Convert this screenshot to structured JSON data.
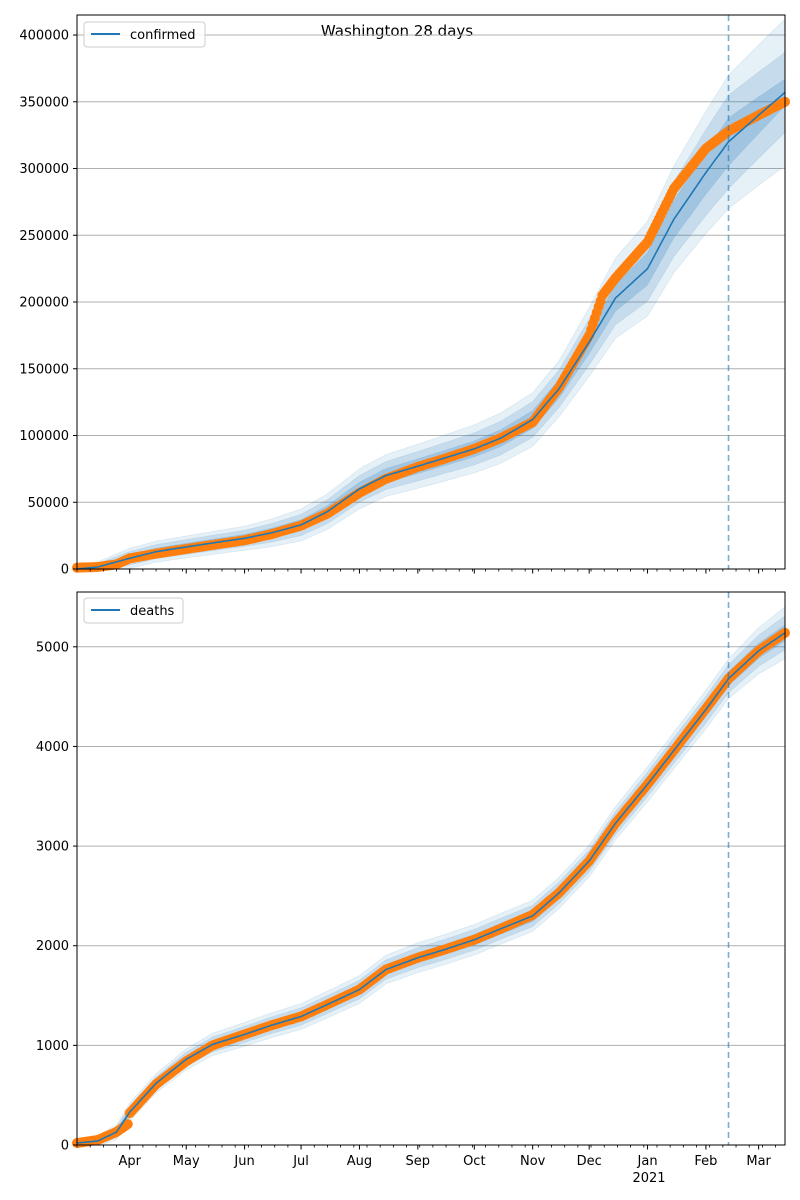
{
  "figure_title": "Washington 28 days",
  "x_axis": {
    "year_label": "2021",
    "tick_labels": [
      "Apr",
      "May",
      "Jun",
      "Jul",
      "Aug",
      "Sep",
      "Oct",
      "Nov",
      "Dec",
      "Jan",
      "Feb",
      "Mar"
    ]
  },
  "colors": {
    "model_line": "#1f77b4",
    "observed": "#ff7f0e",
    "band": "#1f77b4",
    "cutoff_line": "#1f77b4",
    "grid": "#b0b0b0"
  },
  "chart_data": [
    {
      "type": "line",
      "panel": "top",
      "legend": "confirmed",
      "legend_position": "top-left",
      "grid": "horizontal",
      "x_range": [
        "2020-03-04",
        "2021-03-15"
      ],
      "ylim": [
        0,
        415000
      ],
      "y_ticks": [
        0,
        50000,
        100000,
        150000,
        200000,
        250000,
        300000,
        350000,
        400000
      ],
      "y_tick_labels": [
        "0",
        "50000",
        "100000",
        "150000",
        "200000",
        "250000",
        "300000",
        "350000",
        "400000"
      ],
      "forecast_start": "2021-02-13",
      "series": [
        {
          "name": "confirmed",
          "kind": "model",
          "x": [
            "2020-03-04",
            "2020-03-15",
            "2020-04-01",
            "2020-04-15",
            "2020-05-01",
            "2020-05-15",
            "2020-06-01",
            "2020-06-15",
            "2020-07-01",
            "2020-07-15",
            "2020-08-01",
            "2020-08-15",
            "2020-09-01",
            "2020-09-15",
            "2020-10-01",
            "2020-10-15",
            "2020-11-01",
            "2020-11-15",
            "2020-12-01",
            "2020-12-15",
            "2021-01-01",
            "2021-01-15",
            "2021-02-01",
            "2021-02-13",
            "2021-03-01",
            "2021-03-15"
          ],
          "y": [
            0,
            1500,
            8000,
            13000,
            16500,
            19500,
            23000,
            27000,
            33000,
            43000,
            60000,
            70000,
            77000,
            83000,
            90000,
            98000,
            112000,
            135000,
            170000,
            203000,
            225000,
            262000,
            297000,
            320000,
            340000,
            357000
          ]
        },
        {
          "name": "",
          "kind": "observed",
          "x": [
            "2020-03-04",
            "2020-03-15",
            "2020-03-25",
            "2020-04-01",
            "2020-04-15",
            "2020-05-01",
            "2020-05-15",
            "2020-06-01",
            "2020-06-15",
            "2020-07-01",
            "2020-07-15",
            "2020-08-01",
            "2020-08-15",
            "2020-09-01",
            "2020-09-15",
            "2020-10-01",
            "2020-10-15",
            "2020-11-01",
            "2020-11-15",
            "2020-12-01",
            "2020-12-08",
            "2020-12-15",
            "2021-01-01",
            "2021-01-15",
            "2021-02-01",
            "2021-02-13",
            "2021-03-01",
            "2021-03-15"
          ],
          "y": [
            1000,
            1500,
            3500,
            8000,
            11500,
            15000,
            18000,
            21500,
            26000,
            32500,
            41500,
            57000,
            67500,
            76500,
            82500,
            90000,
            98000,
            110000,
            136000,
            175000,
            205000,
            218000,
            245000,
            285000,
            315000,
            328000,
            340000,
            350000
          ]
        }
      ],
      "band_half_widths": [
        {
          "x": [
            "2020-03-04",
            "2020-04-01",
            "2020-06-01",
            "2020-08-01",
            "2020-10-01",
            "2020-11-15",
            "2020-12-15",
            "2021-01-15",
            "2021-02-13",
            "2021-03-15"
          ],
          "y": [
            500,
            2500,
            3000,
            5000,
            6000,
            7000,
            10000,
            14000,
            18000,
            10000
          ]
        },
        {
          "x": [
            "2020-03-04",
            "2020-04-01",
            "2020-06-01",
            "2020-08-01",
            "2020-10-01",
            "2020-11-15",
            "2020-12-15",
            "2021-01-15",
            "2021-02-13",
            "2021-03-15"
          ],
          "y": [
            1000,
            5000,
            6000,
            10000,
            12000,
            14000,
            20000,
            28000,
            35000,
            30000
          ]
        },
        {
          "x": [
            "2020-03-04",
            "2020-04-01",
            "2020-06-01",
            "2020-08-01",
            "2020-10-01",
            "2020-11-15",
            "2020-12-15",
            "2021-01-15",
            "2021-02-13",
            "2021-03-15"
          ],
          "y": [
            1500,
            7500,
            9000,
            15000,
            18000,
            21000,
            30000,
            40000,
            50000,
            55000
          ]
        }
      ]
    },
    {
      "type": "line",
      "panel": "bottom",
      "legend": "deaths",
      "legend_position": "top-left",
      "grid": "horizontal",
      "x_range": [
        "2020-03-04",
        "2021-03-15"
      ],
      "ylim": [
        0,
        5550
      ],
      "y_ticks": [
        0,
        1000,
        2000,
        3000,
        4000,
        5000
      ],
      "y_tick_labels": [
        "0",
        "1000",
        "2000",
        "3000",
        "4000",
        "5000"
      ],
      "forecast_start": "2021-02-13",
      "series": [
        {
          "name": "deaths",
          "kind": "model",
          "x": [
            "2020-03-04",
            "2020-03-15",
            "2020-03-25",
            "2020-04-01",
            "2020-04-15",
            "2020-05-01",
            "2020-05-15",
            "2020-06-01",
            "2020-06-15",
            "2020-07-01",
            "2020-07-15",
            "2020-08-01",
            "2020-08-15",
            "2020-09-01",
            "2020-09-15",
            "2020-10-01",
            "2020-10-15",
            "2020-11-01",
            "2020-11-15",
            "2020-12-01",
            "2020-12-15",
            "2021-01-01",
            "2021-01-15",
            "2021-02-01",
            "2021-02-13",
            "2021-03-01",
            "2021-03-15"
          ],
          "y": [
            20,
            40,
            130,
            330,
            620,
            860,
            1010,
            1110,
            1200,
            1290,
            1410,
            1560,
            1760,
            1880,
            1960,
            2060,
            2170,
            2300,
            2530,
            2850,
            3230,
            3620,
            3960,
            4370,
            4680,
            4960,
            5140
          ]
        },
        {
          "name": "",
          "kind": "observed",
          "x": [
            "2020-03-04",
            "2020-03-15",
            "2020-03-25",
            "2020-03-31",
            "2020-04-01",
            "2020-04-15",
            "2020-05-01",
            "2020-05-15",
            "2020-06-01",
            "2020-06-15",
            "2020-07-01",
            "2020-07-15",
            "2020-08-01",
            "2020-08-15",
            "2020-09-01",
            "2020-09-15",
            "2020-10-01",
            "2020-10-15",
            "2020-11-01",
            "2020-11-15",
            "2020-12-01",
            "2020-12-15",
            "2021-01-01",
            "2021-01-15",
            "2021-02-01",
            "2021-02-13",
            "2021-03-01",
            "2021-03-15"
          ],
          "y": [
            20,
            50,
            130,
            210,
            320,
            610,
            840,
            1000,
            1110,
            1200,
            1290,
            1410,
            1560,
            1760,
            1880,
            1960,
            2060,
            2170,
            2310,
            2530,
            2850,
            3230,
            3620,
            3960,
            4380,
            4680,
            4960,
            5140
          ]
        }
      ],
      "band_half_widths": [
        {
          "x": [
            "2020-03-04",
            "2020-04-01",
            "2020-06-01",
            "2020-09-01",
            "2020-12-01",
            "2021-02-13",
            "2021-03-15"
          ],
          "y": [
            10,
            30,
            40,
            50,
            60,
            70,
            80
          ]
        },
        {
          "x": [
            "2020-03-04",
            "2020-04-01",
            "2020-06-01",
            "2020-09-01",
            "2020-12-01",
            "2021-02-13",
            "2021-03-15"
          ],
          "y": [
            20,
            60,
            80,
            100,
            110,
            140,
            170
          ]
        },
        {
          "x": [
            "2020-03-04",
            "2020-04-01",
            "2020-06-01",
            "2020-09-01",
            "2020-12-01",
            "2021-02-13",
            "2021-03-15"
          ],
          "y": [
            30,
            90,
            120,
            150,
            160,
            200,
            260
          ]
        }
      ]
    }
  ]
}
